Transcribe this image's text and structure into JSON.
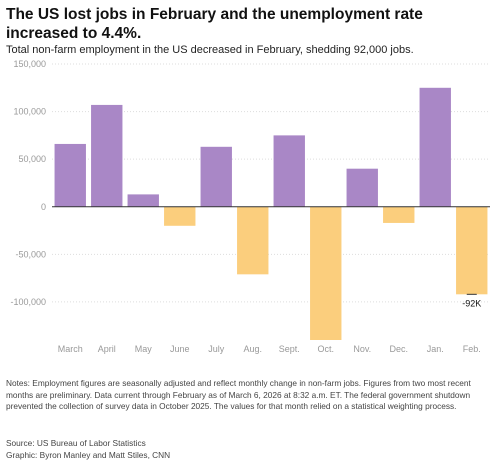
{
  "header": {
    "title": "The US lost jobs in February and the unemployment rate increased to 4.4%.",
    "subtitle": "Total non-farm employment in the US decreased in February, shedding 92,000 jobs."
  },
  "footer": {
    "notes": "Notes: Employment figures are seasonally adjusted and reflect monthly change in non-farm jobs. Figures from two most recent months are preliminary. Data current through February as of March 6, 2026 at 8:32 a.m. ET. The federal government shutdown prevented the collection of survey data in October 2025. The values for that month relied on a statistical weighting process.",
    "source": "Source: US Bureau of Labor Statistics",
    "credit": "Graphic: Byron Manley and Matt Stiles, CNN"
  },
  "colors": {
    "positive": "#a987c6",
    "negative": "#fbce7d",
    "zero_line": "#333333",
    "grid": "#dddddd",
    "tick_text": "#999999"
  },
  "chart_data": {
    "type": "bar",
    "categories": [
      "March",
      "April",
      "May",
      "June",
      "July",
      "Aug.",
      "Sept.",
      "Oct.",
      "Nov.",
      "Dec.",
      "Jan.",
      "Feb."
    ],
    "values": [
      66000,
      107000,
      13000,
      -20000,
      63000,
      -71000,
      75000,
      -140000,
      40000,
      -17000,
      125000,
      -92000
    ],
    "yticks": [
      150000,
      100000,
      50000,
      0,
      -50000,
      -100000
    ],
    "ytick_labels": [
      "150,000",
      "100,000",
      "50,000",
      "0",
      "-50,000",
      "-100,000"
    ],
    "ylim": [
      -140000,
      150000
    ],
    "annotations": [
      {
        "category": "Feb.",
        "text": "-92K"
      }
    ],
    "grid": true,
    "legend": "none"
  }
}
